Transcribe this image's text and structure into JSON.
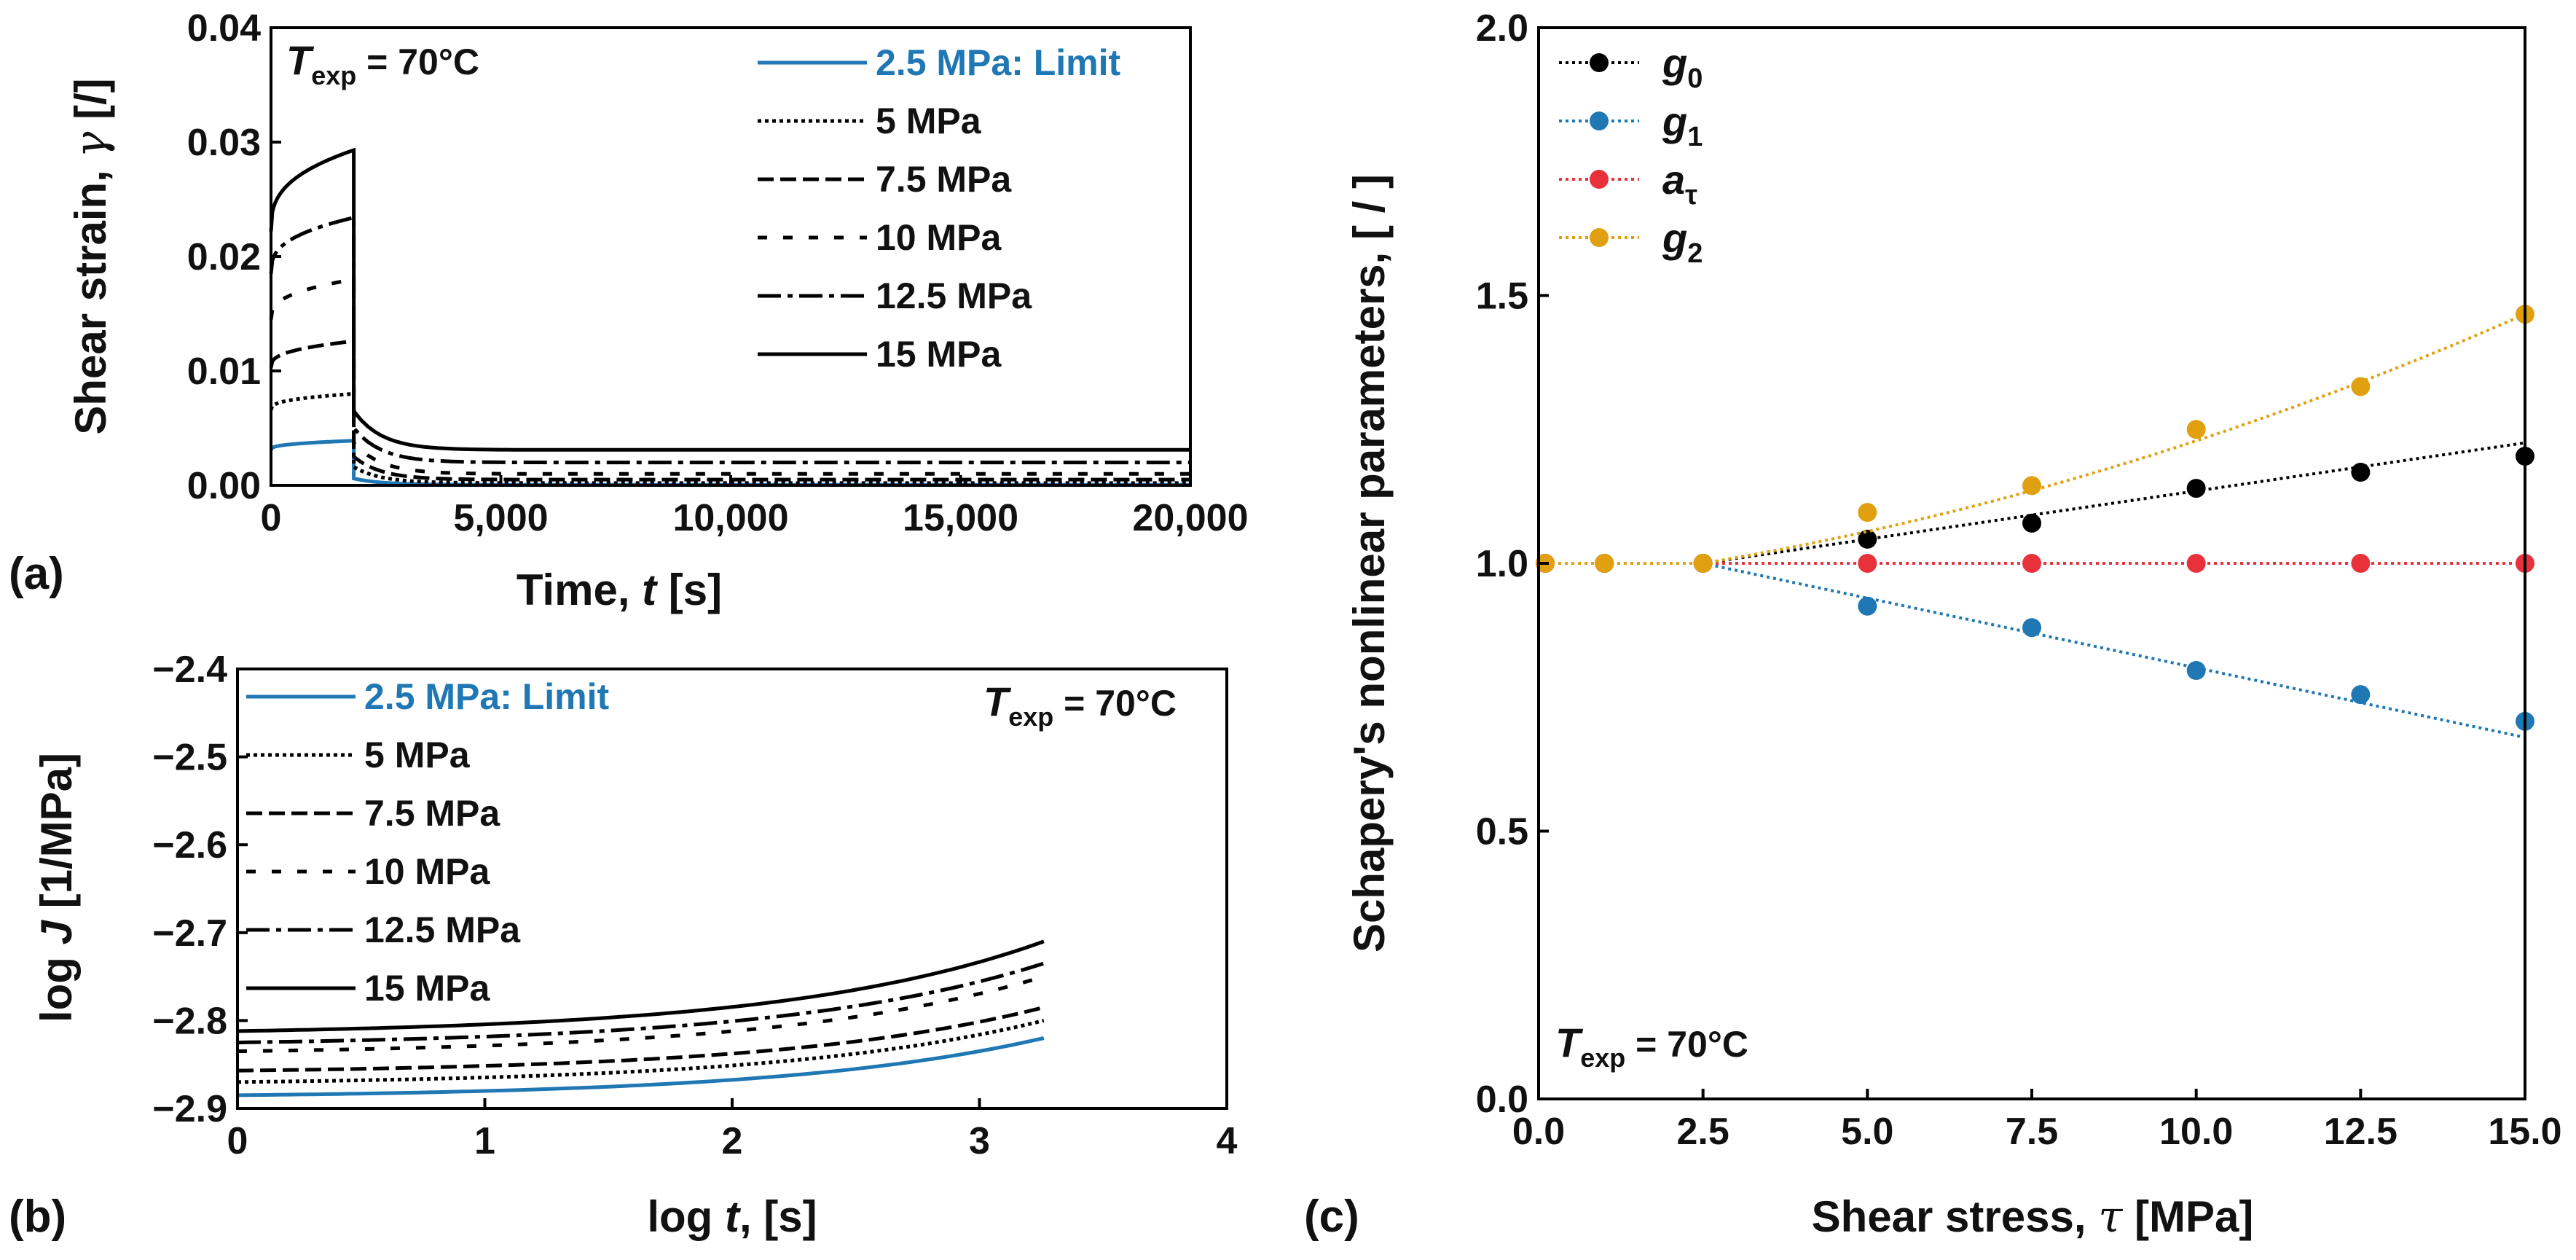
{
  "colors": {
    "blue": "#1f77b4",
    "black": "#000000",
    "red": "#e8313a",
    "orange": "#e0a010"
  },
  "chart_data": [
    {
      "id": "a",
      "panel_label": "(a)",
      "type": "line",
      "xlabel": "Time, t [s]",
      "xlabel_parts": [
        "Time, ",
        "t",
        " [s]"
      ],
      "ylabel": "Shear strain, γ [/]",
      "ylabel_parts": [
        "Shear strain, ",
        "γ",
        " [/]"
      ],
      "xlim": [
        0,
        20000
      ],
      "ylim": [
        0,
        0.04
      ],
      "xticks": [
        0,
        5000,
        10000,
        15000,
        20000
      ],
      "xtick_labels": [
        "0",
        "5,000",
        "10,000",
        "15,000",
        "20,000"
      ],
      "yticks": [
        0,
        0.01,
        0.02,
        0.03,
        0.04
      ],
      "ytick_labels": [
        "0.00",
        "0.01",
        "0.02",
        "0.03",
        "0.04"
      ],
      "annotation": {
        "prefix": "T",
        "sub": "exp",
        "text": " = 70°C"
      },
      "unload_time": 1800,
      "series": [
        {
          "name": "2.5 MPa: Limit",
          "style": "solid-blue",
          "creep_start": 0.0031,
          "creep_end": 0.0039,
          "recovery_start": 0.0006,
          "recovery_end": 5e-05
        },
        {
          "name": "5 MPa",
          "style": "dotted",
          "creep_start": 0.0066,
          "creep_end": 0.008,
          "recovery_start": 0.0016,
          "recovery_end": 0.0002
        },
        {
          "name": "7.5 MPa",
          "style": "dashed",
          "creep_start": 0.0103,
          "creep_end": 0.0126,
          "recovery_start": 0.0025,
          "recovery_end": 0.0005
        },
        {
          "name": "10 MPa",
          "style": "wide-dashed",
          "creep_start": 0.0145,
          "creep_end": 0.018,
          "recovery_start": 0.0037,
          "recovery_end": 0.001
        },
        {
          "name": "12.5 MPa",
          "style": "dash-dot",
          "creep_start": 0.0185,
          "creep_end": 0.0234,
          "recovery_start": 0.005,
          "recovery_end": 0.002
        },
        {
          "name": "15 MPa",
          "style": "solid",
          "creep_start": 0.0222,
          "creep_end": 0.0293,
          "recovery_start": 0.0065,
          "recovery_end": 0.0031
        }
      ]
    },
    {
      "id": "b",
      "panel_label": "(b)",
      "type": "line",
      "xlabel": "log t, [s]",
      "xlabel_parts": [
        "log ",
        "t",
        ", [s]"
      ],
      "ylabel": "log J [1/MPa]",
      "ylabel_parts": [
        "log ",
        "J",
        " [1/MPa]"
      ],
      "xlim": [
        0,
        4
      ],
      "ylim": [
        -2.9,
        -2.4
      ],
      "xticks": [
        0,
        1,
        2,
        3,
        4
      ],
      "xtick_labels": [
        "0",
        "1",
        "2",
        "3",
        "4"
      ],
      "yticks": [
        -2.9,
        -2.8,
        -2.7,
        -2.6,
        -2.5,
        -2.4
      ],
      "ytick_labels": [
        "−2.9",
        "−2.8",
        "−2.7",
        "−2.6",
        "−2.5",
        "−2.4"
      ],
      "annotation": {
        "prefix": "T",
        "sub": "exp",
        "text": " = 70°C"
      },
      "x_end": 3.26,
      "series": [
        {
          "name": "2.5 MPa: Limit",
          "style": "solid-blue",
          "y_start": -2.885,
          "y_end": -2.82
        },
        {
          "name": "5 MPa",
          "style": "dotted",
          "y_start": -2.87,
          "y_end": -2.8
        },
        {
          "name": "7.5 MPa",
          "style": "dashed",
          "y_start": -2.857,
          "y_end": -2.785
        },
        {
          "name": "10 MPa",
          "style": "wide-dashed",
          "y_start": -2.835,
          "y_end": -2.75
        },
        {
          "name": "12.5 MPa",
          "style": "dash-dot",
          "y_start": -2.825,
          "y_end": -2.735
        },
        {
          "name": "15 MPa",
          "style": "solid",
          "y_start": -2.812,
          "y_end": -2.71
        }
      ]
    },
    {
      "id": "c",
      "panel_label": "(c)",
      "type": "scatter",
      "xlabel": "Shear stress, τ [MPa]",
      "xlabel_parts": [
        "Shear stress, ",
        "τ",
        " [MPa]"
      ],
      "ylabel": "Schapery's nonlinear parameters, [ / ]",
      "xlim": [
        0,
        15
      ],
      "ylim": [
        0,
        2
      ],
      "xticks": [
        0,
        2.5,
        5,
        7.5,
        10,
        12.5,
        15
      ],
      "xtick_labels": [
        "0.0",
        "2.5",
        "5.0",
        "7.5",
        "10.0",
        "12.5",
        "15.0"
      ],
      "yticks": [
        0,
        0.5,
        1,
        1.5,
        2
      ],
      "ytick_labels": [
        "0.0",
        "0.5",
        "1.0",
        "1.5",
        "2.0"
      ],
      "annotation": {
        "prefix": "T",
        "sub": "exp",
        "text": " = 70°C"
      },
      "x": [
        0.1,
        1.0,
        2.5,
        5.0,
        7.5,
        10.0,
        12.5,
        15.0
      ],
      "series": [
        {
          "name": "g0",
          "label_main": "g",
          "label_sub": "0",
          "color": "black",
          "values": [
            1.0,
            1.0,
            1.0,
            1.045,
            1.075,
            1.14,
            1.17,
            1.2
          ],
          "fit_end": 1.225
        },
        {
          "name": "g1",
          "label_main": "g",
          "label_sub": "1",
          "color": "blue",
          "values": [
            1.0,
            1.0,
            1.0,
            0.92,
            0.88,
            0.8,
            0.755,
            0.705
          ],
          "fit_end": 0.675
        },
        {
          "name": "aτ",
          "label_main": "a",
          "label_sub": "τ",
          "color": "red",
          "values": [
            1.0,
            1.0,
            1.0,
            1.0,
            1.0,
            1.0,
            1.0,
            1.0
          ],
          "fit_end": 1.0
        },
        {
          "name": "g2",
          "label_main": "g",
          "label_sub": "2",
          "color": "orange",
          "values": [
            1.0,
            1.0,
            1.0,
            1.095,
            1.145,
            1.25,
            1.33,
            1.465
          ],
          "fit_end": 1.465
        }
      ]
    }
  ]
}
